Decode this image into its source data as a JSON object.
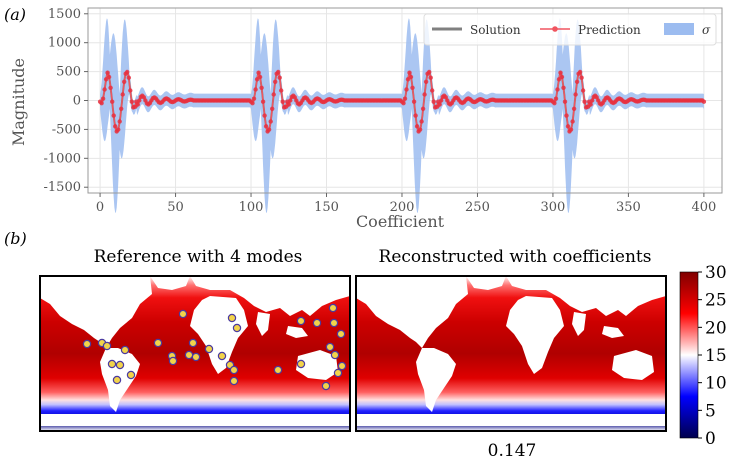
{
  "chart_data": [
    {
      "type": "line",
      "panel_label": "(a)",
      "xlabel": "Coefficient",
      "ylabel": "Magnitude",
      "xlim": [
        -8,
        412
      ],
      "ylim": [
        -1600,
        1600
      ],
      "xticks": [
        0,
        50,
        100,
        150,
        200,
        250,
        300,
        350,
        400
      ],
      "yticks": [
        -1500,
        -1000,
        -500,
        0,
        500,
        1000,
        1500
      ],
      "grid": true,
      "legend_position": "top-right",
      "legend": [
        {
          "label": "Solution",
          "color": "#808080"
        },
        {
          "label": "Prediction",
          "color": "#f05560"
        },
        {
          "label": "σ",
          "color": "#9cbcf0"
        }
      ],
      "series_model": {
        "description": "Signal repeats every 100 coefficients: two oscillation peaks near offsets 5 and 18 with amplitude ~450 (crossing to ~-500), followed by a small damped oscillation from offset 25 to 60 (~80 amplitude). Uncertainty band reaches ~±1500 inside the large-oscillation region and ~±150 elsewhere.",
        "period": 100,
        "start": 0,
        "end": 400,
        "peak_amplitude": 450,
        "tail_amplitude": 80,
        "sigma_peak": 1500,
        "sigma_base": 120
      }
    },
    {
      "type": "heatmap",
      "panel_label": "(b)",
      "maps": [
        {
          "title": "Reference with 4 modes",
          "has_sensors": true
        },
        {
          "title": "Reconstructed with coefficients",
          "has_sensors": false,
          "caption": "0.147"
        }
      ],
      "colorbar": {
        "ticks": [
          0,
          5,
          10,
          15,
          20,
          25,
          30
        ],
        "range": [
          0,
          30
        ],
        "colormap": "seismic",
        "colors": [
          "#00004d",
          "#0000ff",
          "#ffffff",
          "#ff0000",
          "#800000"
        ]
      },
      "sensor_count": 40
    }
  ]
}
